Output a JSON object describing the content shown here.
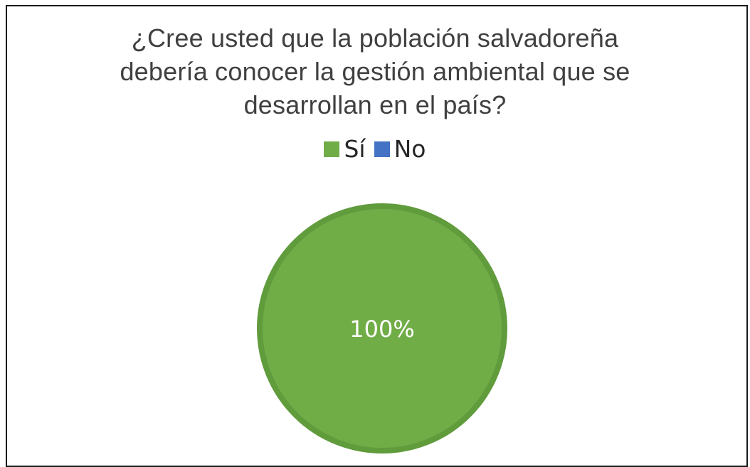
{
  "chart_data": {
    "type": "pie",
    "title": "¿Cree usted que la población salvadoreña\ndebería conocer la gestión ambiental que se\ndesarrollan en el país?",
    "categories": [
      "Sí",
      "No"
    ],
    "values": [
      100,
      0
    ],
    "data_labels": [
      "100%"
    ],
    "colors": [
      "#70ad47",
      "#4472c4"
    ],
    "legend_position": "top"
  }
}
